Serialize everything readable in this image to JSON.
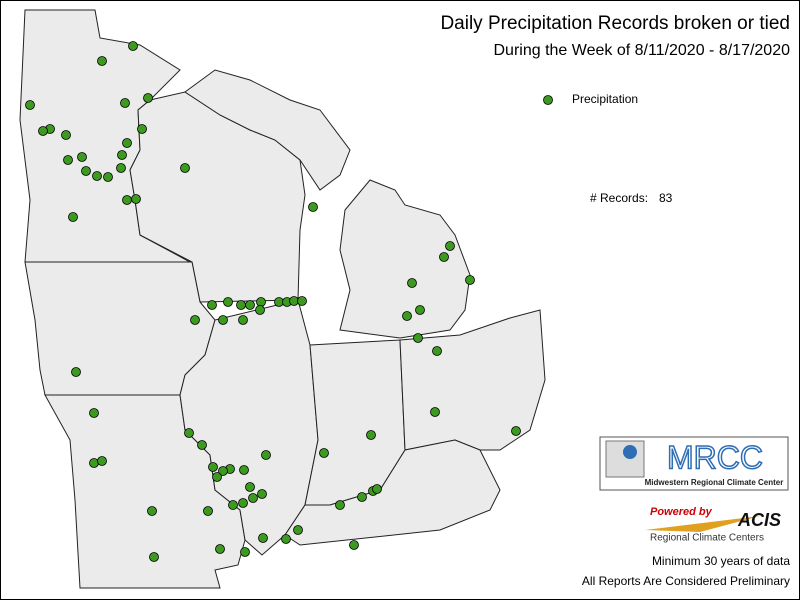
{
  "header": {
    "title": "Daily Precipitation Records broken or tied",
    "subtitle": "During the Week of 8/11/2020 - 8/17/2020"
  },
  "legend": {
    "label": "Precipitation",
    "color": "#3c9a1e"
  },
  "records": {
    "label": "# Records:",
    "count": 83
  },
  "logo": {
    "name": "MRCC",
    "full_name": "Midwestern Regional Climate Center"
  },
  "acis": {
    "powered": "Powered by",
    "name": "ACIS",
    "sub": "Regional Climate Centers"
  },
  "notes": [
    "Minimum 30 years of data",
    "All Reports Are Considered Preliminary"
  ]
}
